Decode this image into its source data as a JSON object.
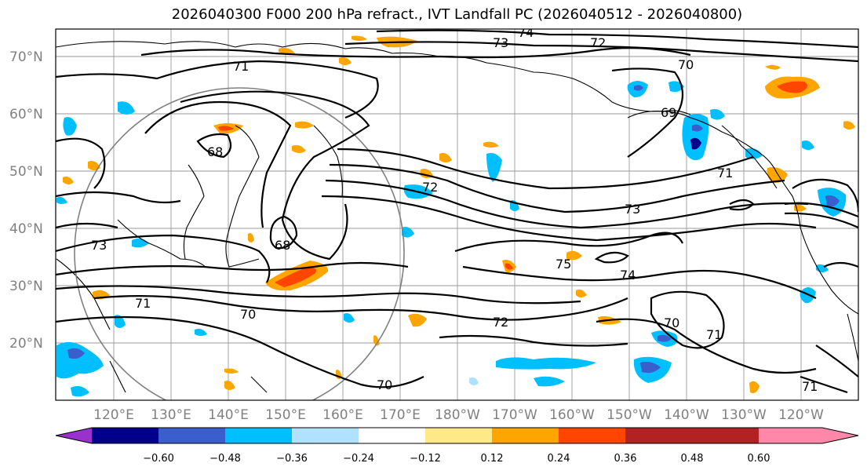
{
  "title": "2026040300 F000 200 hPa refract., IVT Landfall PC (2026040512 - 2026040800)",
  "lat_ticks": [
    "20°N",
    "30°N",
    "40°N",
    "50°N",
    "60°N",
    "70°N"
  ],
  "lon_ticks": [
    "120°E",
    "130°E",
    "140°E",
    "150°E",
    "160°E",
    "170°E",
    "180°W",
    "170°W",
    "160°W",
    "150°W",
    "140°W",
    "130°W",
    "120°W"
  ],
  "colorbar": {
    "ticks": [
      "−0.60",
      "−0.48",
      "−0.36",
      "−0.24",
      "−0.12",
      "0.12",
      "0.24",
      "0.36",
      "0.48",
      "0.60"
    ],
    "colors": [
      "#9932cc",
      "#00008b",
      "#3a5fcd",
      "#00bfff",
      "#b0e2ff",
      "#ffffff",
      "#ffe888",
      "#ffa500",
      "#ff4500",
      "#b22222",
      "#ff88aa"
    ]
  },
  "contour_labels": [
    "74",
    "73",
    "72",
    "71",
    "70",
    "69",
    "68",
    "73",
    "72",
    "71",
    "73",
    "68",
    "75",
    "74",
    "71",
    "70",
    "72",
    "70",
    "71",
    "70",
    "71"
  ]
}
